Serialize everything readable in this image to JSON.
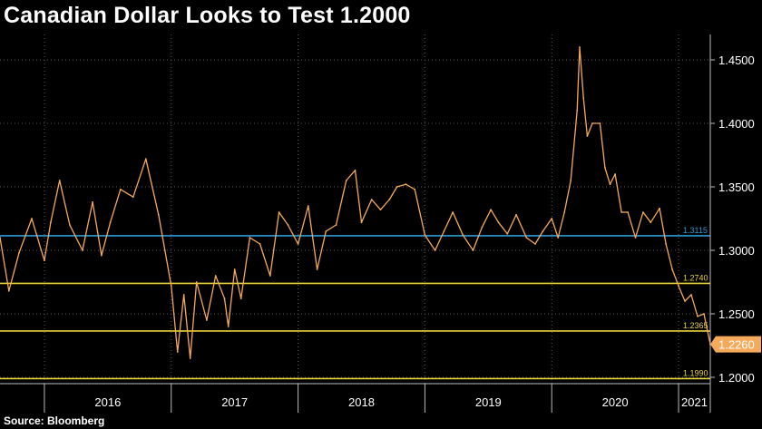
{
  "title": "Canadian Dollar Looks to Test 1.2000",
  "source": "Source: Bloomberg",
  "chart_data": {
    "type": "line",
    "title": "Canadian Dollar Looks to Test 1.2000",
    "xlabel": "",
    "ylabel": "",
    "x_range": [
      2015.65,
      2021.25
    ],
    "ylim": [
      1.195,
      1.47
    ],
    "y_ticks": [
      "1.2000",
      "1.2500",
      "1.3000",
      "1.3500",
      "1.4000",
      "1.4500"
    ],
    "x_labels": [
      "2016",
      "2017",
      "2018",
      "2019",
      "2020",
      "2021"
    ],
    "grid": true,
    "series": [
      {
        "color": "#F5A95B",
        "x": [
          2015.65,
          2015.72,
          2015.8,
          2015.9,
          2016.0,
          2016.05,
          2016.12,
          2016.2,
          2016.3,
          2016.38,
          2016.45,
          2016.52,
          2016.6,
          2016.7,
          2016.8,
          2016.9,
          2016.95,
          2017.0,
          2017.05,
          2017.1,
          2017.15,
          2017.2,
          2017.28,
          2017.35,
          2017.42,
          2017.45,
          2017.5,
          2017.55,
          2017.62,
          2017.7,
          2017.78,
          2017.85,
          2017.92,
          2018.0,
          2018.08,
          2018.15,
          2018.22,
          2018.3,
          2018.38,
          2018.45,
          2018.5,
          2018.58,
          2018.65,
          2018.72,
          2018.78,
          2018.85,
          2018.92,
          2019.0,
          2019.08,
          2019.15,
          2019.22,
          2019.3,
          2019.38,
          2019.45,
          2019.52,
          2019.58,
          2019.65,
          2019.72,
          2019.8,
          2019.87,
          2019.93,
          2020.0,
          2020.05,
          2020.1,
          2020.15,
          2020.2,
          2020.22,
          2020.25,
          2020.28,
          2020.32,
          2020.38,
          2020.42,
          2020.46,
          2020.5,
          2020.55,
          2020.6,
          2020.66,
          2020.72,
          2020.78,
          2020.85,
          2020.9,
          2020.95,
          2021.0,
          2021.05,
          2021.1,
          2021.15,
          2021.2,
          2021.25
        ],
        "values": [
          1.31,
          1.268,
          1.298,
          1.325,
          1.292,
          1.322,
          1.355,
          1.32,
          1.3,
          1.338,
          1.296,
          1.322,
          1.348,
          1.342,
          1.372,
          1.328,
          1.3,
          1.272,
          1.22,
          1.265,
          1.215,
          1.275,
          1.245,
          1.28,
          1.262,
          1.24,
          1.285,
          1.262,
          1.31,
          1.305,
          1.28,
          1.33,
          1.32,
          1.305,
          1.335,
          1.285,
          1.315,
          1.32,
          1.355,
          1.363,
          1.322,
          1.34,
          1.332,
          1.34,
          1.35,
          1.352,
          1.348,
          1.312,
          1.3,
          1.315,
          1.33,
          1.312,
          1.3,
          1.318,
          1.332,
          1.322,
          1.313,
          1.328,
          1.31,
          1.305,
          1.315,
          1.325,
          1.31,
          1.33,
          1.355,
          1.41,
          1.46,
          1.42,
          1.39,
          1.4,
          1.4,
          1.365,
          1.352,
          1.36,
          1.33,
          1.33,
          1.31,
          1.33,
          1.322,
          1.333,
          1.305,
          1.285,
          1.272,
          1.26,
          1.265,
          1.248,
          1.25,
          1.226
        ]
      }
    ],
    "reference_lines": [
      {
        "value": 1.3115,
        "label": "1.3115",
        "color": "#2E9BD6"
      },
      {
        "value": 1.274,
        "label": "1.2740",
        "color": "#E8D33A"
      },
      {
        "value": 1.2365,
        "label": "1.2365",
        "color": "#E8D33A"
      },
      {
        "value": 1.199,
        "label": "1.1990",
        "color": "#E8D33A"
      }
    ],
    "last_value": {
      "value": 1.226,
      "label": "1.2260",
      "color": "#F5A95B"
    }
  }
}
